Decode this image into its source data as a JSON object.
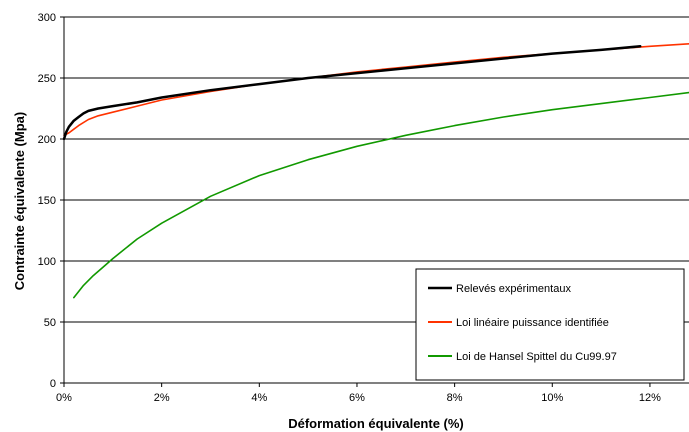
{
  "chart_data": {
    "type": "line",
    "xlabel": "Déformation équivalente (%)",
    "ylabel": "Contrainte équivalente (Mpa)",
    "xlim": [
      0,
      12.8
    ],
    "ylim": [
      0,
      300
    ],
    "x_ticks": [
      "0%",
      "2%",
      "4%",
      "6%",
      "8%",
      "10%",
      "12%"
    ],
    "x_tick_values": [
      0,
      2,
      4,
      6,
      8,
      10,
      12
    ],
    "y_ticks": [
      "0",
      "50",
      "100",
      "150",
      "200",
      "250",
      "300"
    ],
    "y_tick_values": [
      0,
      50,
      100,
      150,
      200,
      250,
      300
    ],
    "grid": "horizontal",
    "legend_position": "bottom-right",
    "series": [
      {
        "name": "Relevés expérimentaux",
        "color": "#000000",
        "x": [
          0.0,
          0.05,
          0.1,
          0.2,
          0.3,
          0.4,
          0.5,
          0.7,
          1.0,
          1.5,
          2.0,
          3.0,
          4.0,
          5.0,
          6.0,
          7.0,
          8.0,
          9.0,
          10.0,
          11.0,
          11.8
        ],
        "y": [
          200,
          206,
          210,
          215,
          218,
          221,
          223,
          225,
          227,
          230,
          234,
          240,
          245,
          250,
          254,
          258,
          262,
          266,
          270,
          273,
          276
        ]
      },
      {
        "name": "Loi linéaire puissance identifiée",
        "color": "#ff3300",
        "x": [
          0.0,
          0.1,
          0.2,
          0.3,
          0.5,
          0.7,
          1.0,
          1.5,
          2.0,
          3.0,
          4.0,
          5.0,
          6.0,
          7.0,
          8.0,
          9.0,
          10.0,
          11.0,
          12.0,
          12.8
        ],
        "y": [
          203,
          205,
          208,
          211,
          216,
          219,
          222,
          227,
          232,
          239,
          245,
          250,
          255,
          259,
          263,
          267,
          270,
          273,
          276,
          278
        ]
      },
      {
        "name": "Loi de Hansel Spittel du Cu99.97",
        "color": "#119900",
        "x": [
          0.2,
          0.4,
          0.6,
          0.8,
          1.0,
          1.5,
          2.0,
          3.0,
          4.0,
          5.0,
          6.0,
          7.0,
          8.0,
          9.0,
          10.0,
          11.0,
          12.0,
          12.8
        ],
        "y": [
          70,
          80,
          88,
          95,
          102,
          118,
          131,
          153,
          170,
          183,
          194,
          203,
          211,
          218,
          224,
          229,
          234,
          238
        ]
      }
    ]
  }
}
